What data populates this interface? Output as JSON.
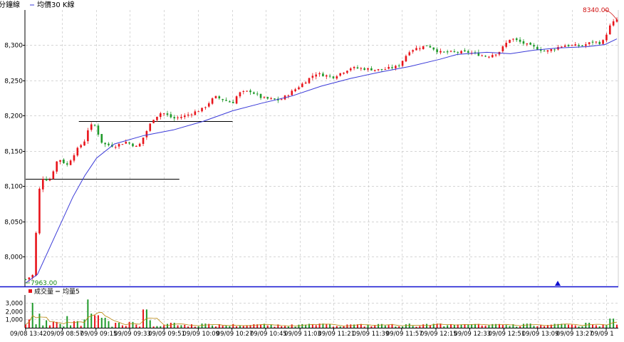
{
  "chart_data": [
    {
      "type": "candlestick",
      "legend": {
        "prefix": "分鐘線",
        "item": "均價30 K線"
      },
      "y_ticks": [
        8000,
        8050,
        8100,
        8150,
        8200,
        8250,
        8300
      ],
      "y_tick_labels": [
        "8,000",
        "8,050",
        "8,100",
        "8,150",
        "8,200",
        "8,250",
        "8,300"
      ],
      "ylim": [
        7958,
        8350
      ],
      "grid": true,
      "max_label": "8340.00",
      "min_label": "7963.00",
      "max_value": 8340,
      "min_value": 7963,
      "horizontal_lines": [
        {
          "y": 8192,
          "x_start": 0.09,
          "x_end": 0.35
        },
        {
          "y": 8111,
          "x_start": 0.0,
          "x_end": 0.26
        }
      ],
      "ma_line": [
        [
          0.0,
          7963
        ],
        [
          0.02,
          7975
        ],
        [
          0.05,
          8030
        ],
        [
          0.08,
          8085
        ],
        [
          0.1,
          8115
        ],
        [
          0.12,
          8140
        ],
        [
          0.15,
          8160
        ],
        [
          0.2,
          8172
        ],
        [
          0.25,
          8180
        ],
        [
          0.3,
          8192
        ],
        [
          0.35,
          8207
        ],
        [
          0.4,
          8218
        ],
        [
          0.45,
          8228
        ],
        [
          0.5,
          8242
        ],
        [
          0.55,
          8253
        ],
        [
          0.6,
          8262
        ],
        [
          0.65,
          8270
        ],
        [
          0.7,
          8280
        ],
        [
          0.73,
          8287
        ],
        [
          0.78,
          8290
        ],
        [
          0.82,
          8288
        ],
        [
          0.86,
          8293
        ],
        [
          0.9,
          8296
        ],
        [
          0.95,
          8298
        ],
        [
          0.98,
          8301
        ],
        [
          1.0,
          8309
        ]
      ],
      "anchors": [
        [
          0.0,
          7968
        ],
        [
          0.012,
          7974
        ],
        [
          0.025,
          8113
        ],
        [
          0.04,
          8108
        ],
        [
          0.055,
          8140
        ],
        [
          0.07,
          8130
        ],
        [
          0.085,
          8150
        ],
        [
          0.1,
          8165
        ],
        [
          0.105,
          8180
        ],
        [
          0.115,
          8190
        ],
        [
          0.13,
          8160
        ],
        [
          0.15,
          8157
        ],
        [
          0.17,
          8163
        ],
        [
          0.19,
          8155
        ],
        [
          0.215,
          8195
        ],
        [
          0.23,
          8205
        ],
        [
          0.25,
          8196
        ],
        [
          0.27,
          8200
        ],
        [
          0.3,
          8210
        ],
        [
          0.32,
          8227
        ],
        [
          0.35,
          8218
        ],
        [
          0.36,
          8232
        ],
        [
          0.38,
          8235
        ],
        [
          0.4,
          8225
        ],
        [
          0.43,
          8222
        ],
        [
          0.46,
          8240
        ],
        [
          0.49,
          8260
        ],
        [
          0.52,
          8255
        ],
        [
          0.55,
          8268
        ],
        [
          0.6,
          8265
        ],
        [
          0.63,
          8270
        ],
        [
          0.65,
          8293
        ],
        [
          0.68,
          8300
        ],
        [
          0.7,
          8290
        ],
        [
          0.75,
          8290
        ],
        [
          0.78,
          8284
        ],
        [
          0.8,
          8290
        ],
        [
          0.82,
          8310
        ],
        [
          0.85,
          8300
        ],
        [
          0.88,
          8291
        ],
        [
          0.91,
          8300
        ],
        [
          0.94,
          8299
        ],
        [
          0.96,
          8305
        ],
        [
          0.975,
          8303
        ],
        [
          0.99,
          8330
        ],
        [
          1.0,
          8336
        ]
      ],
      "candle_count": 172,
      "marker": {
        "x": 0.9
      }
    },
    {
      "type": "bar",
      "legend": {
        "item_volume": "成交量",
        "item_avg": "均量5"
      },
      "y_ticks": [
        1000,
        2000,
        3000
      ],
      "y_tick_labels": [
        "1,000",
        "2,000",
        "3,000"
      ],
      "ylim": [
        0,
        3600
      ],
      "grid": true,
      "spikes": [
        [
          0.005,
          1000
        ],
        [
          0.008,
          500
        ],
        [
          0.012,
          3000
        ],
        [
          0.024,
          1700
        ],
        [
          0.035,
          900
        ],
        [
          0.05,
          700
        ],
        [
          0.07,
          1400
        ],
        [
          0.085,
          800
        ],
        [
          0.1,
          1000
        ],
        [
          0.105,
          3400
        ],
        [
          0.11,
          1700
        ],
        [
          0.12,
          1500
        ],
        [
          0.13,
          1200
        ],
        [
          0.14,
          800
        ],
        [
          0.155,
          600
        ],
        [
          0.18,
          700
        ],
        [
          0.2,
          2200
        ],
        [
          0.205,
          1500
        ],
        [
          0.21,
          900
        ],
        [
          0.25,
          600
        ],
        [
          0.3,
          500
        ],
        [
          0.35,
          450
        ],
        [
          0.4,
          400
        ],
        [
          0.45,
          400
        ],
        [
          0.5,
          500
        ],
        [
          0.55,
          400
        ],
        [
          0.6,
          450
        ],
        [
          0.65,
          500
        ],
        [
          0.7,
          500
        ],
        [
          0.75,
          400
        ],
        [
          0.8,
          450
        ],
        [
          0.85,
          500
        ],
        [
          0.9,
          450
        ],
        [
          0.95,
          600
        ],
        [
          0.99,
          1100
        ]
      ],
      "base_volume": 300
    }
  ],
  "x_axis": {
    "labels": [
      "09/08 13:42",
      "09/09 08:57",
      "09/09 09:15",
      "09/09 09:33",
      "09/09 09:51",
      "09/09 10:09",
      "09/09 10:27",
      "09/09 10:45",
      "09/09 11:03",
      "09/09 11:21",
      "09/09 11:39",
      "09/09 11:57",
      "09/09 12:15",
      "09/09 12:33",
      "09/09 12:51",
      "09/09 13:09",
      "09/09 13:27",
      "09/09 1"
    ],
    "positions": [
      0.0,
      0.062,
      0.119,
      0.176,
      0.234,
      0.292,
      0.349,
      0.406,
      0.464,
      0.521,
      0.579,
      0.636,
      0.694,
      0.751,
      0.809,
      0.866,
      0.924,
      0.982
    ]
  },
  "colors": {
    "up": "#e8141b",
    "down": "#1f9a2a",
    "ma": "#3a3ad8",
    "max_label": "#d01010",
    "min_label": "#1a8a1a",
    "separator": "#1010d0",
    "marker": "#1010d0",
    "volume_avg": "#b8860b",
    "grid": "#c8c8c8",
    "hline": "#000000"
  }
}
